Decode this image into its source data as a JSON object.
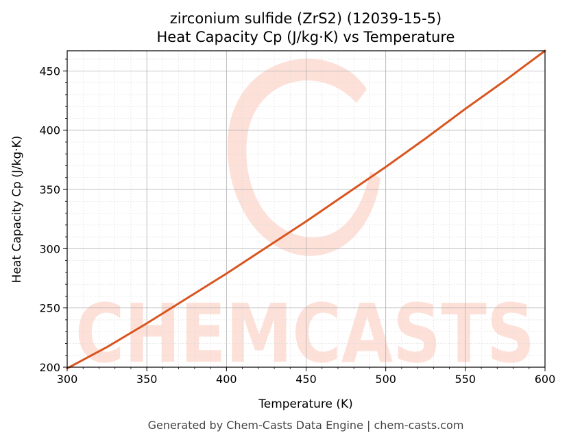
{
  "title_line1": "zirconium sulfide (ZrS2) (12039-15-5)",
  "title_line2": "Heat Capacity Cp (J/kg·K) vs Temperature",
  "footer": "Generated by Chem-Casts Data Engine | chem-casts.com",
  "watermark": "CHEMCASTS",
  "colors": {
    "line": "#d9541e",
    "watermark": "#fde0d8",
    "grid_major": "#b0b0b0",
    "grid_minor": "#dddddd"
  },
  "chart_data": {
    "type": "line",
    "xlabel": "Temperature (K)",
    "ylabel": "Heat Capacity Cp (J/kg·K)",
    "xlim": [
      300,
      600
    ],
    "ylim": [
      200,
      467
    ],
    "grid": true,
    "x_ticks": [
      300,
      350,
      400,
      450,
      500,
      550,
      600
    ],
    "y_ticks": [
      200,
      250,
      300,
      350,
      400,
      450
    ],
    "series": [
      {
        "x": [
          300,
          325,
          350,
          375,
          400,
          425,
          450,
          475,
          500,
          525,
          550,
          575,
          600
        ],
        "values": [
          199,
          217,
          237,
          258,
          279,
          301,
          323,
          346,
          369,
          393,
          418,
          442,
          467
        ]
      }
    ]
  }
}
